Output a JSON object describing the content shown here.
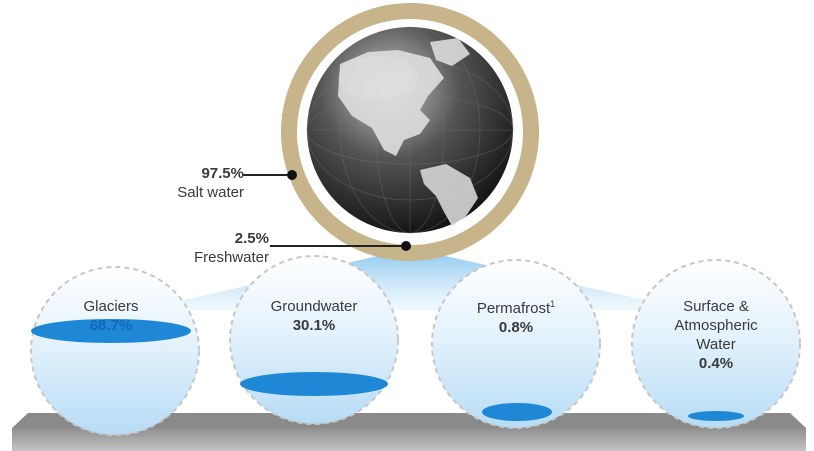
{
  "salt_water": {
    "percent": "97.5%",
    "label": "Salt water"
  },
  "freshwater": {
    "percent": "2.5%",
    "label": "Freshwater"
  },
  "categories": [
    {
      "name": "Glaciers",
      "percent": "68.7%"
    },
    {
      "name": "Groundwater",
      "percent": "30.1%"
    },
    {
      "name": "Permafrost",
      "superscript": "1",
      "percent": "0.8%"
    },
    {
      "name_lines": [
        "Surface &",
        "Atmospheric",
        "Water"
      ],
      "percent": "0.4%"
    }
  ],
  "colors": {
    "ring": "#c8b48a",
    "water_fill": "#1e88d6",
    "drop_light": "#d6ecfb",
    "fan": "#bfe0f7",
    "shelf": "#9a9a9a"
  },
  "icons": [
    "globe-icon"
  ]
}
